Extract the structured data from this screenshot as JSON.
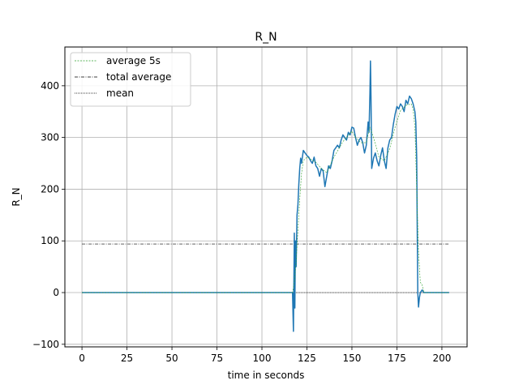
{
  "chart_data": {
    "type": "line",
    "title": "R_N",
    "xlabel": "time in seconds",
    "ylabel": "R_N",
    "xlim": [
      -9.5,
      214
    ],
    "ylim": [
      -105,
      475
    ],
    "xticks": [
      0,
      25,
      50,
      75,
      100,
      125,
      150,
      175,
      200
    ],
    "yticks": [
      -100,
      0,
      100,
      200,
      300,
      400
    ],
    "xtick_labels": [
      "0",
      "25",
      "50",
      "75",
      "100",
      "125",
      "150",
      "175",
      "200"
    ],
    "ytick_labels": [
      "−100",
      "0",
      "100",
      "200",
      "300",
      "400"
    ],
    "grid": true,
    "legend_position": "upper-left",
    "series": [
      {
        "name": "R_N",
        "color": "#1f77b4",
        "style": "solid",
        "x": [
          0,
          60,
          117,
          117.5,
          118,
          118.3,
          118.6,
          119,
          119.5,
          120,
          120.5,
          121,
          121.5,
          122,
          123,
          124,
          125,
          126,
          127,
          128,
          129,
          130,
          131,
          132,
          133,
          134,
          135,
          136,
          137,
          138,
          139,
          140,
          141,
          142,
          143,
          144,
          145,
          146,
          147,
          148,
          149,
          150,
          151,
          152,
          153,
          154,
          155,
          156,
          157,
          158,
          159,
          159.5,
          160,
          160.3,
          160.6,
          161,
          162,
          163,
          164,
          165,
          166,
          167,
          168,
          169,
          170,
          171,
          172,
          173,
          174,
          175,
          176,
          177,
          178,
          179,
          180,
          181,
          182,
          183,
          184,
          185,
          185.5,
          186,
          186.3,
          186.6,
          187,
          187.5,
          188,
          189,
          190,
          195,
          200,
          204
        ],
        "y": [
          0,
          0,
          0,
          -75,
          115,
          -30,
          100,
          50,
          150,
          170,
          210,
          240,
          260,
          250,
          275,
          270,
          265,
          262,
          255,
          250,
          262,
          245,
          240,
          225,
          240,
          235,
          205,
          225,
          245,
          240,
          255,
          275,
          280,
          285,
          280,
          295,
          305,
          300,
          295,
          310,
          305,
          320,
          318,
          300,
          285,
          295,
          300,
          290,
          270,
          285,
          330,
          310,
          385,
          448,
          380,
          240,
          260,
          270,
          255,
          245,
          265,
          280,
          255,
          240,
          280,
          295,
          300,
          325,
          345,
          360,
          355,
          365,
          360,
          350,
          372,
          365,
          380,
          375,
          365,
          350,
          330,
          260,
          120,
          0,
          -28,
          -10,
          0,
          5,
          0,
          0,
          0,
          0
        ]
      },
      {
        "name": "average 5s",
        "color": "#2ca02c",
        "style": "dashed",
        "x": [
          0,
          117,
          118,
          119,
          120,
          121,
          122,
          123,
          125,
          127,
          130,
          133,
          136,
          140,
          145,
          150,
          152,
          155,
          158,
          160,
          162,
          165,
          168,
          171,
          174,
          177,
          180,
          183,
          184,
          185,
          186,
          187,
          188,
          189,
          190,
          204
        ],
        "y": [
          0,
          0,
          20,
          60,
          120,
          180,
          230,
          255,
          262,
          258,
          252,
          240,
          232,
          262,
          292,
          312,
          300,
          290,
          290,
          320,
          300,
          262,
          255,
          278,
          320,
          352,
          362,
          365,
          355,
          320,
          200,
          80,
          20,
          15,
          0,
          0
        ]
      },
      {
        "name": "total average",
        "color": "#000000",
        "style": "dashdot",
        "x": [
          0,
          204
        ],
        "y": [
          94,
          94
        ]
      },
      {
        "name": "mean",
        "color": "#000000",
        "style": "dotted",
        "x": [
          0,
          204
        ],
        "y": [
          0,
          0
        ]
      }
    ]
  }
}
